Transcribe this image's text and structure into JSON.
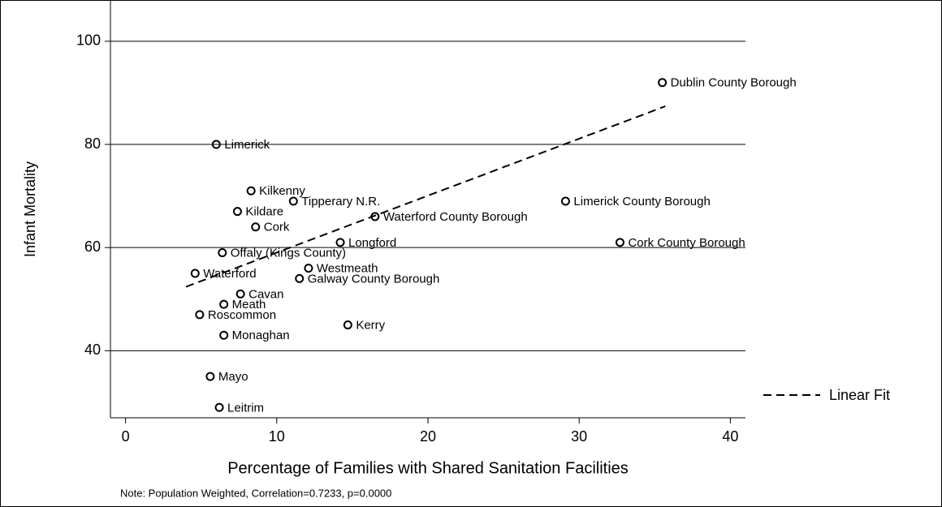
{
  "chart_data": {
    "type": "scatter",
    "x_label": "Percentage of Families with Shared Sanitation Facilities",
    "y_label": "Infant Mortality",
    "note": "Note: Population Weighted, Correlation=0.7233, p=0.0000",
    "labels": [
      "Dublin County Borough",
      "Limerick",
      "Kilkenny",
      "Tipperary N.R.",
      "Kildare",
      "Waterford County Borough",
      "Cork",
      "Limerick County Borough",
      "Longford",
      "Cork County Borough",
      "Offaly (Kings County)",
      "Westmeath",
      "Waterford",
      "Galway County Borough",
      "Cavan",
      "Meath",
      "Roscommon",
      "Kerry",
      "Monaghan",
      "Mayo",
      "Leitrim"
    ],
    "x": [
      35.5,
      6.0,
      8.3,
      11.1,
      7.4,
      16.5,
      8.6,
      29.1,
      14.2,
      32.7,
      6.4,
      12.1,
      4.6,
      11.5,
      7.6,
      6.5,
      4.9,
      14.7,
      6.5,
      5.6,
      6.2
    ],
    "y": [
      92,
      80,
      71,
      69,
      67,
      66,
      64,
      69,
      61,
      61,
      59,
      56,
      55,
      54,
      51,
      49,
      47,
      45,
      43,
      35,
      29
    ],
    "color": "#000000",
    "fit": {
      "name": "Linear Fit",
      "x": [
        4.0,
        35.7
      ],
      "y": [
        52.4,
        87.4
      ],
      "color": "#000000"
    },
    "xlim": [
      -1,
      41
    ],
    "ylim": [
      27,
      108
    ],
    "xticks": [
      0,
      10,
      20,
      30,
      40
    ],
    "yticks": [
      40,
      60,
      80,
      100
    ],
    "grid": true
  }
}
